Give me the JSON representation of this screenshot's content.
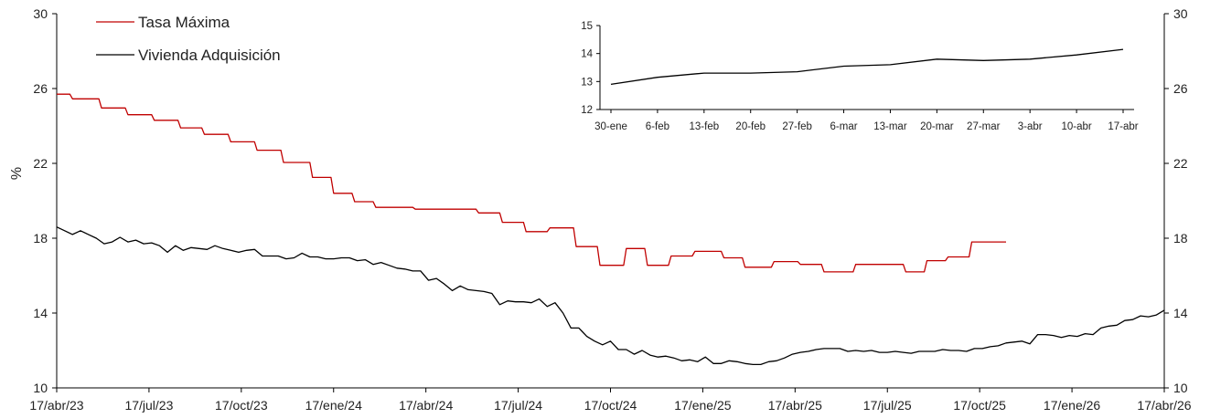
{
  "chart_data": [
    {
      "type": "line",
      "ylabel": "%",
      "ylim": [
        10,
        30
      ],
      "yticks": [
        "10",
        "14",
        "18",
        "22",
        "26",
        "30"
      ],
      "xticks": [
        "17/abr/23",
        "17/jul/23",
        "17/oct/23",
        "17/ene/24",
        "17/abr/24",
        "17/jul/24",
        "17/oct/24",
        "17/ene/25",
        "17/abr/25",
        "17/jul/25",
        "17/oct/25",
        "17/ene/26",
        "17/abr/26"
      ],
      "legend_position": "top-left",
      "grid": false,
      "series": [
        {
          "name": "Tasa Máxima",
          "color": "#c00000",
          "x_unit": "month index (0 = 17/abr/23, 36 = 17/abr/26)",
          "points": [
            [
              0,
              25.7
            ],
            [
              0.5,
              25.7
            ],
            [
              0.6,
              25.45
            ],
            [
              1.6,
              25.45
            ],
            [
              1.7,
              24.96
            ],
            [
              2.6,
              24.96
            ],
            [
              2.7,
              24.6
            ],
            [
              3.6,
              24.6
            ],
            [
              3.7,
              24.3
            ],
            [
              4.6,
              24.3
            ],
            [
              4.7,
              23.9
            ],
            [
              5.5,
              23.9
            ],
            [
              5.6,
              23.55
            ],
            [
              6.5,
              23.55
            ],
            [
              6.6,
              23.15
            ],
            [
              7.5,
              23.15
            ],
            [
              7.6,
              22.7
            ],
            [
              8.5,
              22.7
            ],
            [
              8.6,
              22.05
            ],
            [
              9.6,
              22.05
            ],
            [
              9.7,
              21.25
            ],
            [
              10.4,
              21.25
            ],
            [
              10.5,
              20.4
            ],
            [
              11.2,
              20.4
            ],
            [
              11.3,
              19.95
            ],
            [
              12.0,
              19.95
            ],
            [
              12.1,
              19.65
            ],
            [
              13.5,
              19.65
            ],
            [
              13.6,
              19.55
            ],
            [
              15.9,
              19.55
            ],
            [
              16.0,
              19.35
            ],
            [
              16.8,
              19.35
            ],
            [
              16.9,
              18.85
            ],
            [
              17.7,
              18.85
            ],
            [
              17.8,
              18.35
            ],
            [
              18.6,
              18.35
            ],
            [
              18.7,
              18.55
            ],
            [
              19.6,
              18.55
            ],
            [
              19.7,
              17.55
            ],
            [
              20.5,
              17.55
            ],
            [
              20.6,
              16.55
            ],
            [
              21.5,
              16.55
            ],
            [
              21.6,
              17.45
            ],
            [
              22.3,
              17.45
            ],
            [
              22.4,
              16.55
            ],
            [
              23.2,
              16.55
            ],
            [
              23.3,
              17.05
            ],
            [
              24.1,
              17.05
            ],
            [
              24.2,
              17.3
            ],
            [
              25.2,
              17.3
            ],
            [
              25.3,
              16.95
            ],
            [
              26.0,
              16.95
            ],
            [
              26.1,
              16.45
            ],
            [
              27.1,
              16.45
            ],
            [
              27.2,
              16.75
            ],
            [
              28.1,
              16.75
            ],
            [
              28.2,
              16.6
            ],
            [
              29.0,
              16.6
            ],
            [
              29.1,
              16.2
            ],
            [
              30.2,
              16.2
            ],
            [
              30.3,
              16.6
            ],
            [
              32.1,
              16.6
            ],
            [
              32.2,
              16.2
            ],
            [
              32.9,
              16.2
            ],
            [
              33.0,
              16.8
            ],
            [
              33.7,
              16.8
            ],
            [
              33.8,
              17.0
            ],
            [
              34.6,
              17.0
            ],
            [
              34.7,
              17.8
            ],
            [
              36,
              17.8
            ]
          ]
        },
        {
          "name": "Vivienda Adquisición",
          "color": "#000000",
          "x_unit": "month index (0 = 17/abr/23, 36 = 17/abr/26)",
          "points": [
            [
              0,
              18.6
            ],
            [
              0.3,
              18.4
            ],
            [
              0.6,
              18.2
            ],
            [
              0.9,
              18.4
            ],
            [
              1.2,
              18.2
            ],
            [
              1.5,
              18.0
            ],
            [
              1.8,
              17.7
            ],
            [
              2.1,
              17.8
            ],
            [
              2.4,
              18.05
            ],
            [
              2.7,
              17.8
            ],
            [
              3.0,
              17.9
            ],
            [
              3.3,
              17.7
            ],
            [
              3.6,
              17.75
            ],
            [
              3.9,
              17.6
            ],
            [
              4.2,
              17.25
            ],
            [
              4.5,
              17.6
            ],
            [
              4.8,
              17.35
            ],
            [
              5.1,
              17.5
            ],
            [
              5.4,
              17.45
            ],
            [
              5.7,
              17.4
            ],
            [
              6.0,
              17.6
            ],
            [
              6.3,
              17.45
            ],
            [
              6.6,
              17.35
            ],
            [
              6.9,
              17.25
            ],
            [
              7.2,
              17.35
            ],
            [
              7.5,
              17.4
            ],
            [
              7.8,
              17.05
            ],
            [
              8.1,
              17.05
            ],
            [
              8.4,
              17.05
            ],
            [
              8.7,
              16.9
            ],
            [
              9.0,
              16.95
            ],
            [
              9.3,
              17.2
            ],
            [
              9.6,
              17.0
            ],
            [
              9.9,
              17.0
            ],
            [
              10.2,
              16.9
            ],
            [
              10.5,
              16.9
            ],
            [
              10.8,
              16.95
            ],
            [
              11.1,
              16.95
            ],
            [
              11.4,
              16.8
            ],
            [
              11.7,
              16.85
            ],
            [
              12.0,
              16.6
            ],
            [
              12.3,
              16.7
            ],
            [
              12.6,
              16.55
            ],
            [
              12.9,
              16.4
            ],
            [
              13.2,
              16.35
            ],
            [
              13.5,
              16.25
            ],
            [
              13.8,
              16.25
            ],
            [
              14.1,
              15.75
            ],
            [
              14.4,
              15.85
            ],
            [
              14.7,
              15.55
            ],
            [
              15.0,
              15.2
            ],
            [
              15.3,
              15.45
            ],
            [
              15.6,
              15.25
            ],
            [
              15.9,
              15.2
            ],
            [
              16.2,
              15.15
            ],
            [
              16.5,
              15.05
            ],
            [
              16.8,
              14.45
            ],
            [
              17.1,
              14.65
            ],
            [
              17.4,
              14.6
            ],
            [
              17.7,
              14.6
            ],
            [
              18.0,
              14.55
            ],
            [
              18.3,
              14.75
            ],
            [
              18.6,
              14.35
            ],
            [
              18.9,
              14.55
            ],
            [
              19.2,
              14.0
            ],
            [
              19.5,
              13.2
            ],
            [
              19.8,
              13.2
            ],
            [
              20.1,
              12.75
            ],
            [
              20.4,
              12.5
            ],
            [
              20.7,
              12.3
            ],
            [
              21.0,
              12.5
            ],
            [
              21.3,
              12.05
            ],
            [
              21.6,
              12.05
            ],
            [
              21.9,
              11.8
            ],
            [
              22.2,
              12.0
            ],
            [
              22.5,
              11.75
            ],
            [
              22.8,
              11.65
            ],
            [
              23.1,
              11.7
            ],
            [
              23.4,
              11.6
            ],
            [
              23.7,
              11.45
            ],
            [
              24.0,
              11.5
            ],
            [
              24.3,
              11.4
            ],
            [
              24.6,
              11.65
            ],
            [
              24.9,
              11.3
            ],
            [
              25.2,
              11.3
            ],
            [
              25.5,
              11.45
            ],
            [
              25.8,
              11.4
            ],
            [
              26.1,
              11.3
            ],
            [
              26.4,
              11.25
            ],
            [
              26.7,
              11.25
            ],
            [
              27.0,
              11.4
            ],
            [
              27.3,
              11.45
            ],
            [
              27.6,
              11.6
            ],
            [
              27.9,
              11.8
            ],
            [
              28.2,
              11.9
            ],
            [
              28.5,
              11.95
            ],
            [
              28.8,
              12.05
            ],
            [
              29.1,
              12.1
            ],
            [
              29.4,
              12.1
            ],
            [
              29.7,
              12.1
            ],
            [
              30.0,
              11.95
            ],
            [
              30.3,
              12.0
            ],
            [
              30.6,
              11.95
            ],
            [
              30.9,
              12.0
            ],
            [
              31.2,
              11.9
            ],
            [
              31.5,
              11.9
            ],
            [
              31.8,
              11.95
            ],
            [
              32.1,
              11.9
            ],
            [
              32.4,
              11.85
            ],
            [
              32.7,
              11.95
            ],
            [
              33.0,
              11.95
            ],
            [
              33.3,
              11.95
            ],
            [
              33.6,
              12.05
            ],
            [
              33.9,
              12.0
            ],
            [
              34.2,
              12.0
            ],
            [
              34.5,
              11.95
            ],
            [
              34.8,
              12.1
            ],
            [
              35.1,
              12.1
            ],
            [
              35.4,
              12.2
            ],
            [
              35.7,
              12.25
            ],
            [
              36.0,
              12.4
            ],
            [
              36.3,
              12.45
            ],
            [
              36.6,
              12.5
            ],
            [
              36.9,
              12.35
            ],
            [
              37.2,
              12.85
            ],
            [
              37.5,
              12.85
            ],
            [
              37.8,
              12.8
            ],
            [
              38.1,
              12.7
            ],
            [
              38.4,
              12.8
            ],
            [
              38.7,
              12.75
            ],
            [
              39.0,
              12.9
            ],
            [
              39.3,
              12.85
            ],
            [
              39.6,
              13.2
            ],
            [
              39.9,
              13.3
            ],
            [
              40.2,
              13.35
            ],
            [
              40.5,
              13.6
            ],
            [
              40.8,
              13.65
            ],
            [
              41.1,
              13.85
            ],
            [
              41.4,
              13.8
            ],
            [
              41.7,
              13.9
            ],
            [
              42.0,
              14.15
            ]
          ]
        }
      ]
    },
    {
      "type": "line",
      "ylim": [
        12,
        15
      ],
      "yticks": [
        "12",
        "13",
        "14",
        "15"
      ],
      "categories": [
        "30-ene",
        "6-feb",
        "13-feb",
        "20-feb",
        "27-feb",
        "6-mar",
        "13-mar",
        "20-mar",
        "27-mar",
        "3-abr",
        "10-abr",
        "17-abr"
      ],
      "series": [
        {
          "color": "#000000",
          "values": [
            12.9,
            13.15,
            13.3,
            13.3,
            13.35,
            13.55,
            13.6,
            13.8,
            13.75,
            13.8,
            13.95,
            14.15
          ]
        }
      ]
    }
  ]
}
